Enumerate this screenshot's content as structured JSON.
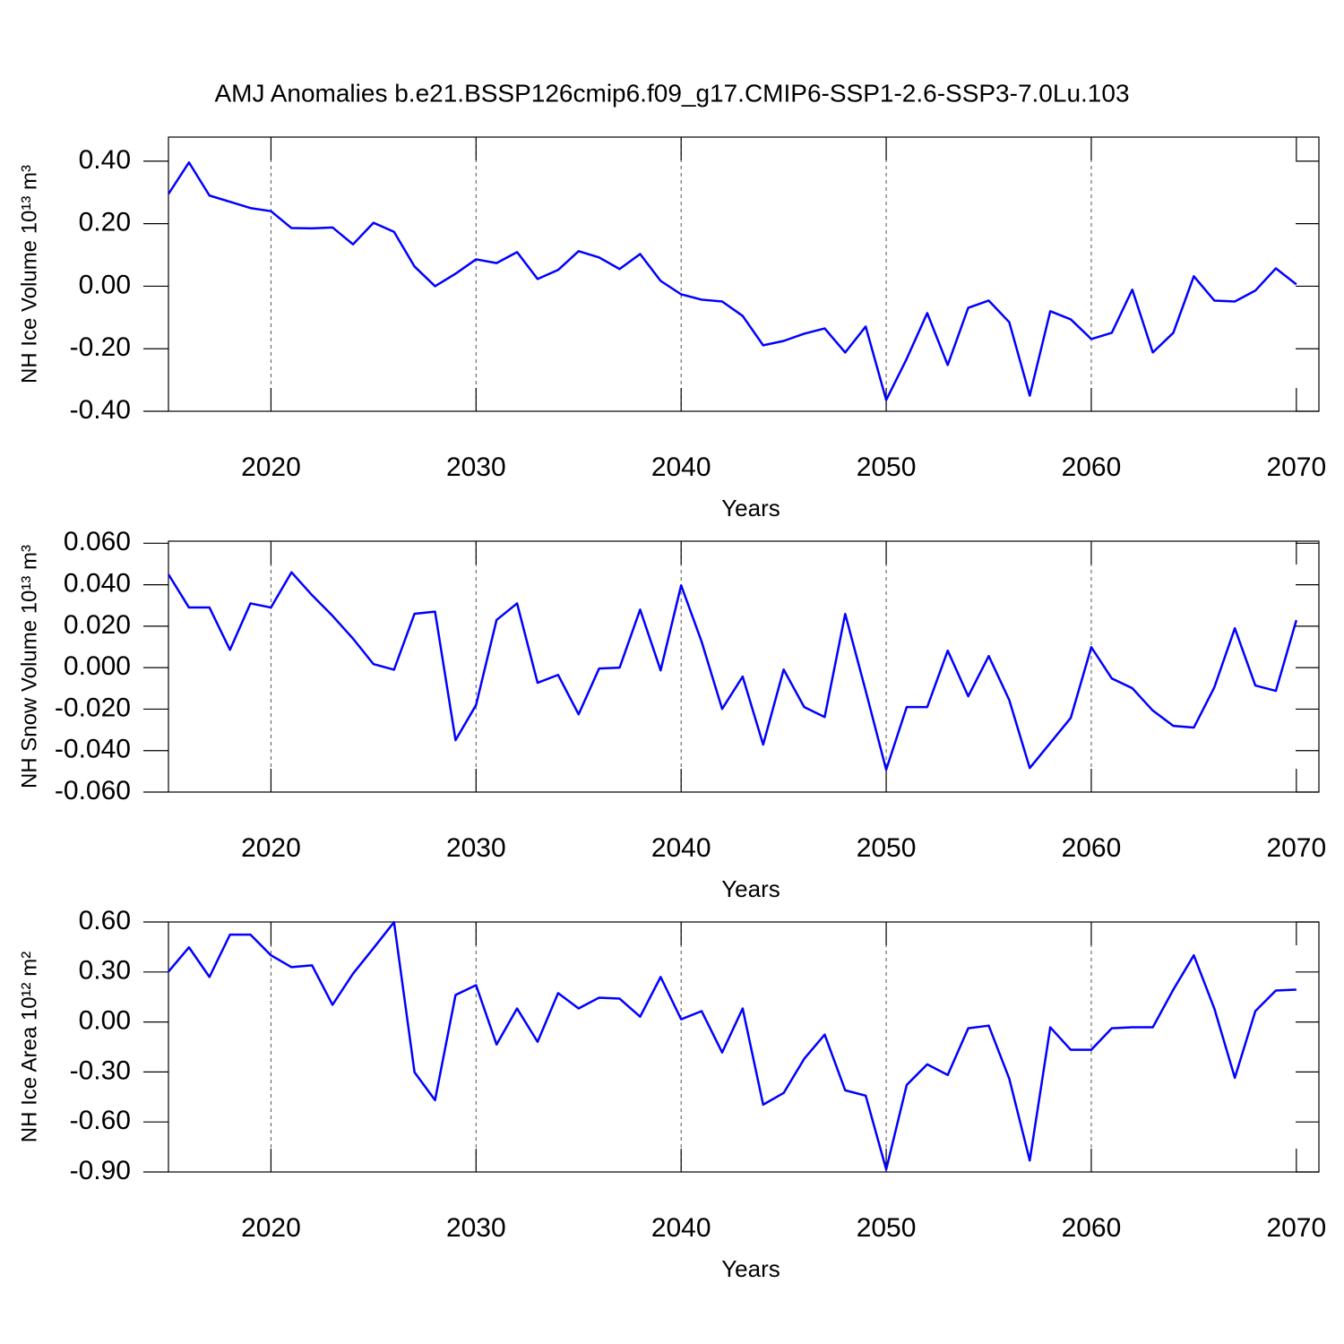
{
  "chart_data": [
    {
      "type": "line",
      "title": "AMJ Anomalies b.e21.BSSP126cmip6.f09_g17.CMIP6-SSP1-2.6-SSP3-7.0Lu.103",
      "x_label": "Years",
      "y_label": "NH Ice Volume 10¹³ m³",
      "x": [
        2015,
        2016,
        2017,
        2018,
        2019,
        2020,
        2021,
        2022,
        2023,
        2024,
        2025,
        2026,
        2027,
        2028,
        2029,
        2030,
        2031,
        2032,
        2033,
        2034,
        2035,
        2036,
        2037,
        2038,
        2039,
        2040,
        2041,
        2042,
        2043,
        2044,
        2045,
        2046,
        2047,
        2048,
        2049,
        2050,
        2051,
        2052,
        2053,
        2054,
        2055,
        2056,
        2057,
        2058,
        2059,
        2060,
        2061,
        2062,
        2063,
        2064,
        2065,
        2066,
        2067,
        2068,
        2069,
        2070
      ],
      "series": [
        {
          "color": "#0000ff",
          "values": [
            0.295,
            0.396,
            0.29,
            0.27,
            0.25,
            0.24,
            0.186,
            0.185,
            0.188,
            0.134,
            0.203,
            0.174,
            0.063,
            0.0,
            0.04,
            0.086,
            0.074,
            0.109,
            0.023,
            0.052,
            0.112,
            0.092,
            0.055,
            0.103,
            0.017,
            -0.026,
            -0.043,
            -0.049,
            -0.095,
            -0.189,
            -0.175,
            -0.152,
            -0.135,
            -0.212,
            -0.129,
            -0.364,
            -0.232,
            -0.086,
            -0.252,
            -0.069,
            -0.046,
            -0.115,
            -0.35,
            -0.08,
            -0.106,
            -0.169,
            -0.149,
            -0.011,
            -0.212,
            -0.149,
            0.032,
            -0.046,
            -0.049,
            -0.014,
            0.057,
            0.006
          ]
        }
      ],
      "xlim": [
        2015,
        2071.1
      ],
      "ylim": [
        -0.4,
        0.477
      ],
      "xticks": [
        2020,
        2030,
        2040,
        2050,
        2060,
        2070
      ],
      "yticks": [
        {
          "value": -0.4,
          "label": "-0.40"
        },
        {
          "value": -0.2,
          "label": "-0.20"
        },
        {
          "value": 0,
          "label": "0.00"
        },
        {
          "value": 0.2,
          "label": "0.20"
        },
        {
          "value": 0.4,
          "label": "0.40"
        }
      ],
      "x_grid": true
    },
    {
      "type": "line",
      "x_label": "Years",
      "y_label": "NH Snow Volume 10¹³ m³",
      "x": [
        2015,
        2016,
        2017,
        2018,
        2019,
        2020,
        2021,
        2022,
        2023,
        2024,
        2025,
        2026,
        2027,
        2028,
        2029,
        2030,
        2031,
        2032,
        2033,
        2034,
        2035,
        2036,
        2037,
        2038,
        2039,
        2040,
        2041,
        2042,
        2043,
        2044,
        2045,
        2046,
        2047,
        2048,
        2049,
        2050,
        2051,
        2052,
        2053,
        2054,
        2055,
        2056,
        2057,
        2058,
        2059,
        2060,
        2061,
        2062,
        2063,
        2064,
        2065,
        2066,
        2067,
        2068,
        2069,
        2070
      ],
      "series": [
        {
          "color": "#0000ff",
          "values": [
            0.045,
            0.029,
            0.029,
            0.0086,
            0.031,
            0.029,
            0.046,
            0.035,
            0.025,
            0.014,
            0.0017,
            -0.001,
            0.026,
            0.027,
            -0.035,
            -0.018,
            0.023,
            0.031,
            -0.0073,
            -0.0035,
            -0.0225,
            -0.0004,
            0.0,
            0.028,
            -0.0013,
            0.0397,
            0.0125,
            -0.0199,
            -0.0043,
            -0.0371,
            -0.0009,
            -0.019,
            -0.0238,
            0.0259,
            -0.0112,
            -0.0492,
            -0.019,
            -0.019,
            0.0082,
            -0.0138,
            0.0056,
            -0.0156,
            -0.0484,
            -0.0363,
            -0.0242,
            0.0099,
            -0.0052,
            -0.0099,
            -0.0207,
            -0.0281,
            -0.0289,
            -0.0095,
            0.019,
            -0.0086,
            -0.0112,
            0.0229
          ]
        }
      ],
      "xlim": [
        2015,
        2071.1
      ],
      "ylim": [
        -0.06,
        0.061
      ],
      "xticks": [
        2020,
        2030,
        2040,
        2050,
        2060,
        2070
      ],
      "yticks": [
        {
          "value": -0.06,
          "label": "-0.060"
        },
        {
          "value": -0.04,
          "label": "-0.040"
        },
        {
          "value": -0.02,
          "label": "-0.020"
        },
        {
          "value": 0,
          "label": "0.000"
        },
        {
          "value": 0.02,
          "label": "0.020"
        },
        {
          "value": 0.04,
          "label": "0.040"
        },
        {
          "value": 0.06,
          "label": "0.060"
        }
      ],
      "x_grid": true
    },
    {
      "type": "line",
      "x_label": "Years",
      "y_label": "NH Ice Area 10¹² m²",
      "x": [
        2015,
        2016,
        2017,
        2018,
        2019,
        2020,
        2021,
        2022,
        2023,
        2024,
        2025,
        2026,
        2027,
        2028,
        2029,
        2030,
        2031,
        2032,
        2033,
        2034,
        2035,
        2036,
        2037,
        2038,
        2039,
        2040,
        2041,
        2042,
        2043,
        2044,
        2045,
        2046,
        2047,
        2048,
        2049,
        2050,
        2051,
        2052,
        2053,
        2054,
        2055,
        2056,
        2057,
        2058,
        2059,
        2060,
        2061,
        2062,
        2063,
        2064,
        2065,
        2066,
        2067,
        2068,
        2069,
        2070
      ],
      "series": [
        {
          "color": "#0000ff",
          "values": [
            0.302,
            0.448,
            0.27,
            0.524,
            0.524,
            0.4,
            0.329,
            0.34,
            0.103,
            0.29,
            0.443,
            0.599,
            -0.302,
            -0.469,
            0.162,
            0.221,
            -0.135,
            0.081,
            -0.119,
            0.173,
            0.081,
            0.146,
            0.14,
            0.032,
            0.27,
            0.016,
            0.065,
            -0.183,
            0.081,
            -0.496,
            -0.426,
            -0.221,
            -0.076,
            -0.41,
            -0.442,
            -0.885,
            -0.378,
            -0.254,
            -0.318,
            -0.038,
            -0.022,
            -0.34,
            -0.831,
            -0.032,
            -0.167,
            -0.167,
            -0.038,
            -0.032,
            -0.032,
            0.194,
            0.4,
            0.081,
            -0.335,
            0.065,
            0.189,
            0.194
          ]
        }
      ],
      "xlim": [
        2015,
        2071.1
      ],
      "ylim": [
        -0.9,
        0.6
      ],
      "xticks": [
        2020,
        2030,
        2040,
        2050,
        2060,
        2070
      ],
      "yticks": [
        {
          "value": -0.9,
          "label": "-0.90"
        },
        {
          "value": -0.6,
          "label": "-0.60"
        },
        {
          "value": -0.3,
          "label": "-0.30"
        },
        {
          "value": 0,
          "label": "0.00"
        },
        {
          "value": 0.3,
          "label": "0.30"
        },
        {
          "value": 0.6,
          "label": "0.60"
        }
      ],
      "x_grid": true
    }
  ]
}
